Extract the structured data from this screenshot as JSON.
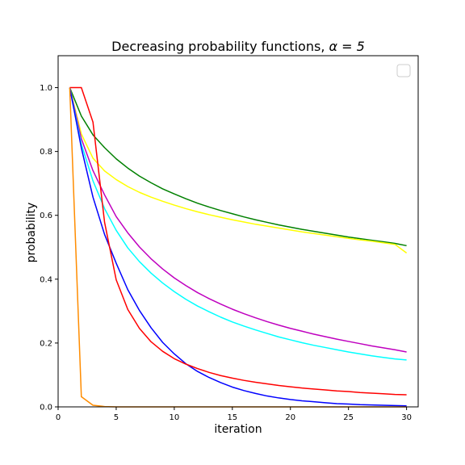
{
  "chart_data": {
    "type": "line",
    "title_main": "Decreasing probability functions, ",
    "title_alpha": "α = 5",
    "xlabel": "iteration",
    "ylabel": "probability",
    "xlim": [
      0,
      31
    ],
    "ylim": [
      0,
      1.1
    ],
    "xticks": [
      0,
      5,
      10,
      15,
      20,
      25,
      30
    ],
    "yticks": [
      0.0,
      0.2,
      0.4,
      0.6,
      0.8,
      1.0
    ],
    "xtick_labels": [
      "0",
      "5",
      "10",
      "15",
      "20",
      "25",
      "30"
    ],
    "ytick_labels": [
      "0.0",
      "0.2",
      "0.4",
      "0.6",
      "0.8",
      "1.0"
    ],
    "legend": {
      "placement": "top-right",
      "entries": []
    },
    "grid": false,
    "x": [
      1,
      2,
      3,
      4,
      5,
      6,
      7,
      8,
      9,
      10,
      11,
      12,
      13,
      14,
      15,
      16,
      17,
      18,
      19,
      20,
      21,
      22,
      23,
      24,
      25,
      26,
      27,
      28,
      29,
      30
    ],
    "series": [
      {
        "color": "#008000",
        "values": [
          1.0,
          0.911,
          0.852,
          0.812,
          0.777,
          0.748,
          0.723,
          0.702,
          0.683,
          0.667,
          0.652,
          0.638,
          0.626,
          0.615,
          0.605,
          0.595,
          0.586,
          0.578,
          0.57,
          0.563,
          0.556,
          0.55,
          0.544,
          0.538,
          0.532,
          0.527,
          0.522,
          0.517,
          0.512,
          0.505
        ]
      },
      {
        "color": "#ffff00",
        "values": [
          1.0,
          0.855,
          0.779,
          0.739,
          0.712,
          0.69,
          0.672,
          0.657,
          0.644,
          0.632,
          0.621,
          0.611,
          0.602,
          0.594,
          0.586,
          0.579,
          0.572,
          0.566,
          0.56,
          0.554,
          0.548,
          0.543,
          0.538,
          0.533,
          0.528,
          0.523,
          0.519,
          0.514,
          0.509,
          0.482
        ]
      },
      {
        "color": "#bf00bf",
        "values": [
          1.0,
          0.84,
          0.74,
          0.664,
          0.596,
          0.545,
          0.501,
          0.464,
          0.432,
          0.404,
          0.38,
          0.358,
          0.339,
          0.322,
          0.306,
          0.292,
          0.279,
          0.267,
          0.256,
          0.246,
          0.237,
          0.228,
          0.22,
          0.212,
          0.205,
          0.198,
          0.191,
          0.185,
          0.179,
          0.172
        ]
      },
      {
        "color": "#00ffff",
        "values": [
          1.0,
          0.823,
          0.708,
          0.621,
          0.553,
          0.498,
          0.455,
          0.419,
          0.388,
          0.361,
          0.337,
          0.316,
          0.298,
          0.281,
          0.266,
          0.253,
          0.241,
          0.23,
          0.219,
          0.21,
          0.201,
          0.193,
          0.186,
          0.179,
          0.172,
          0.166,
          0.16,
          0.155,
          0.15,
          0.147
        ]
      },
      {
        "color": "#0000ff",
        "values": [
          1.0,
          0.811,
          0.657,
          0.54,
          0.45,
          0.367,
          0.302,
          0.248,
          0.202,
          0.166,
          0.135,
          0.111,
          0.092,
          0.076,
          0.062,
          0.051,
          0.042,
          0.034,
          0.028,
          0.023,
          0.019,
          0.016,
          0.013,
          0.01,
          0.009,
          0.007,
          0.006,
          0.005,
          0.004,
          0.003
        ]
      },
      {
        "color": "#ff0000",
        "values": [
          1.0,
          1.0,
          0.892,
          0.578,
          0.398,
          0.305,
          0.246,
          0.204,
          0.174,
          0.151,
          0.134,
          0.12,
          0.108,
          0.098,
          0.09,
          0.083,
          0.077,
          0.072,
          0.067,
          0.063,
          0.059,
          0.056,
          0.053,
          0.05,
          0.048,
          0.045,
          0.043,
          0.041,
          0.039,
          0.038
        ]
      },
      {
        "color": "#ff8c00",
        "values": [
          1.0,
          0.032,
          0.005,
          0.001,
          0.0,
          0.0,
          0.0,
          0.0,
          0.0,
          0.0,
          0.0,
          0.0,
          0.0,
          0.0,
          0.0,
          0.0,
          0.0,
          0.0,
          0.0,
          0.0,
          0.0,
          0.0,
          0.0,
          0.0,
          0.0,
          0.0,
          0.0,
          0.0,
          0.0,
          0.0
        ]
      }
    ]
  }
}
